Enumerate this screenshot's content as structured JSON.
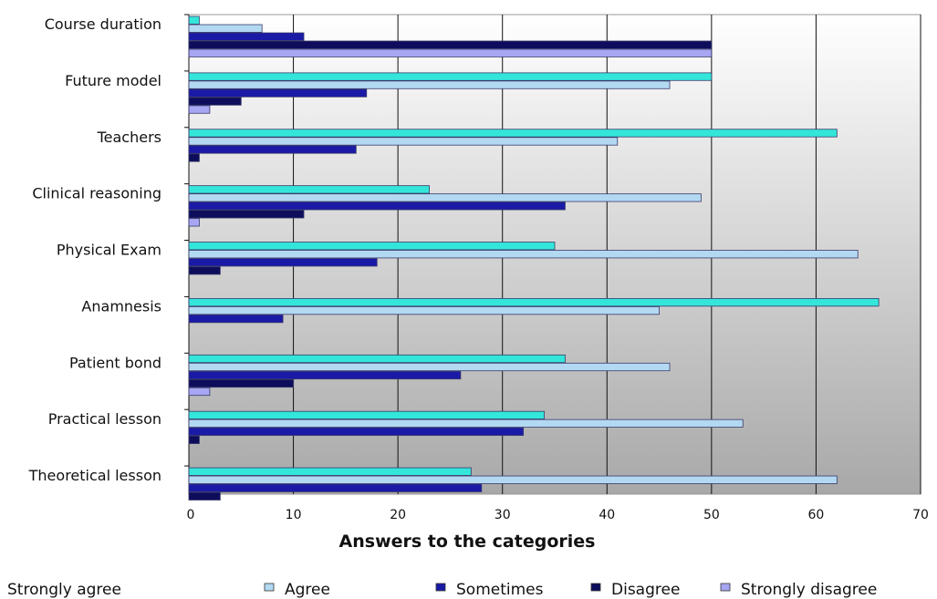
{
  "chart_data": {
    "type": "bar",
    "orientation": "horizontal",
    "xlabel": "Answers to the categories",
    "xlim": [
      0,
      70
    ],
    "xticks": [
      0,
      10,
      20,
      30,
      40,
      50,
      60,
      70
    ],
    "grid": true,
    "legend_position": "bottom",
    "categories": [
      "Course duration",
      "Future model",
      "Teachers",
      "Clinical reasoning",
      "Physical Exam",
      "Anamnesis",
      "Patient bond",
      "Practical lesson",
      "Theoretical lesson"
    ],
    "series": [
      {
        "name": "Strongly agree",
        "color": "#33e6d9",
        "values": [
          1,
          50,
          62,
          23,
          35,
          66,
          36,
          34,
          27
        ]
      },
      {
        "name": "Agree",
        "color": "#b3d9f2",
        "values": [
          7,
          46,
          41,
          49,
          64,
          45,
          46,
          53,
          62
        ]
      },
      {
        "name": "Sometimes",
        "color": "#1a1aa6",
        "values": [
          11,
          17,
          16,
          36,
          18,
          9,
          26,
          32,
          28
        ]
      },
      {
        "name": "Disagree",
        "color": "#0d0d5c",
        "values": [
          50,
          5,
          1,
          11,
          3,
          0,
          10,
          1,
          3
        ]
      },
      {
        "name": "Strongly disagree",
        "color": "#a6a6f2",
        "values": [
          50,
          2,
          0,
          1,
          0,
          0,
          2,
          0,
          0
        ]
      }
    ]
  }
}
